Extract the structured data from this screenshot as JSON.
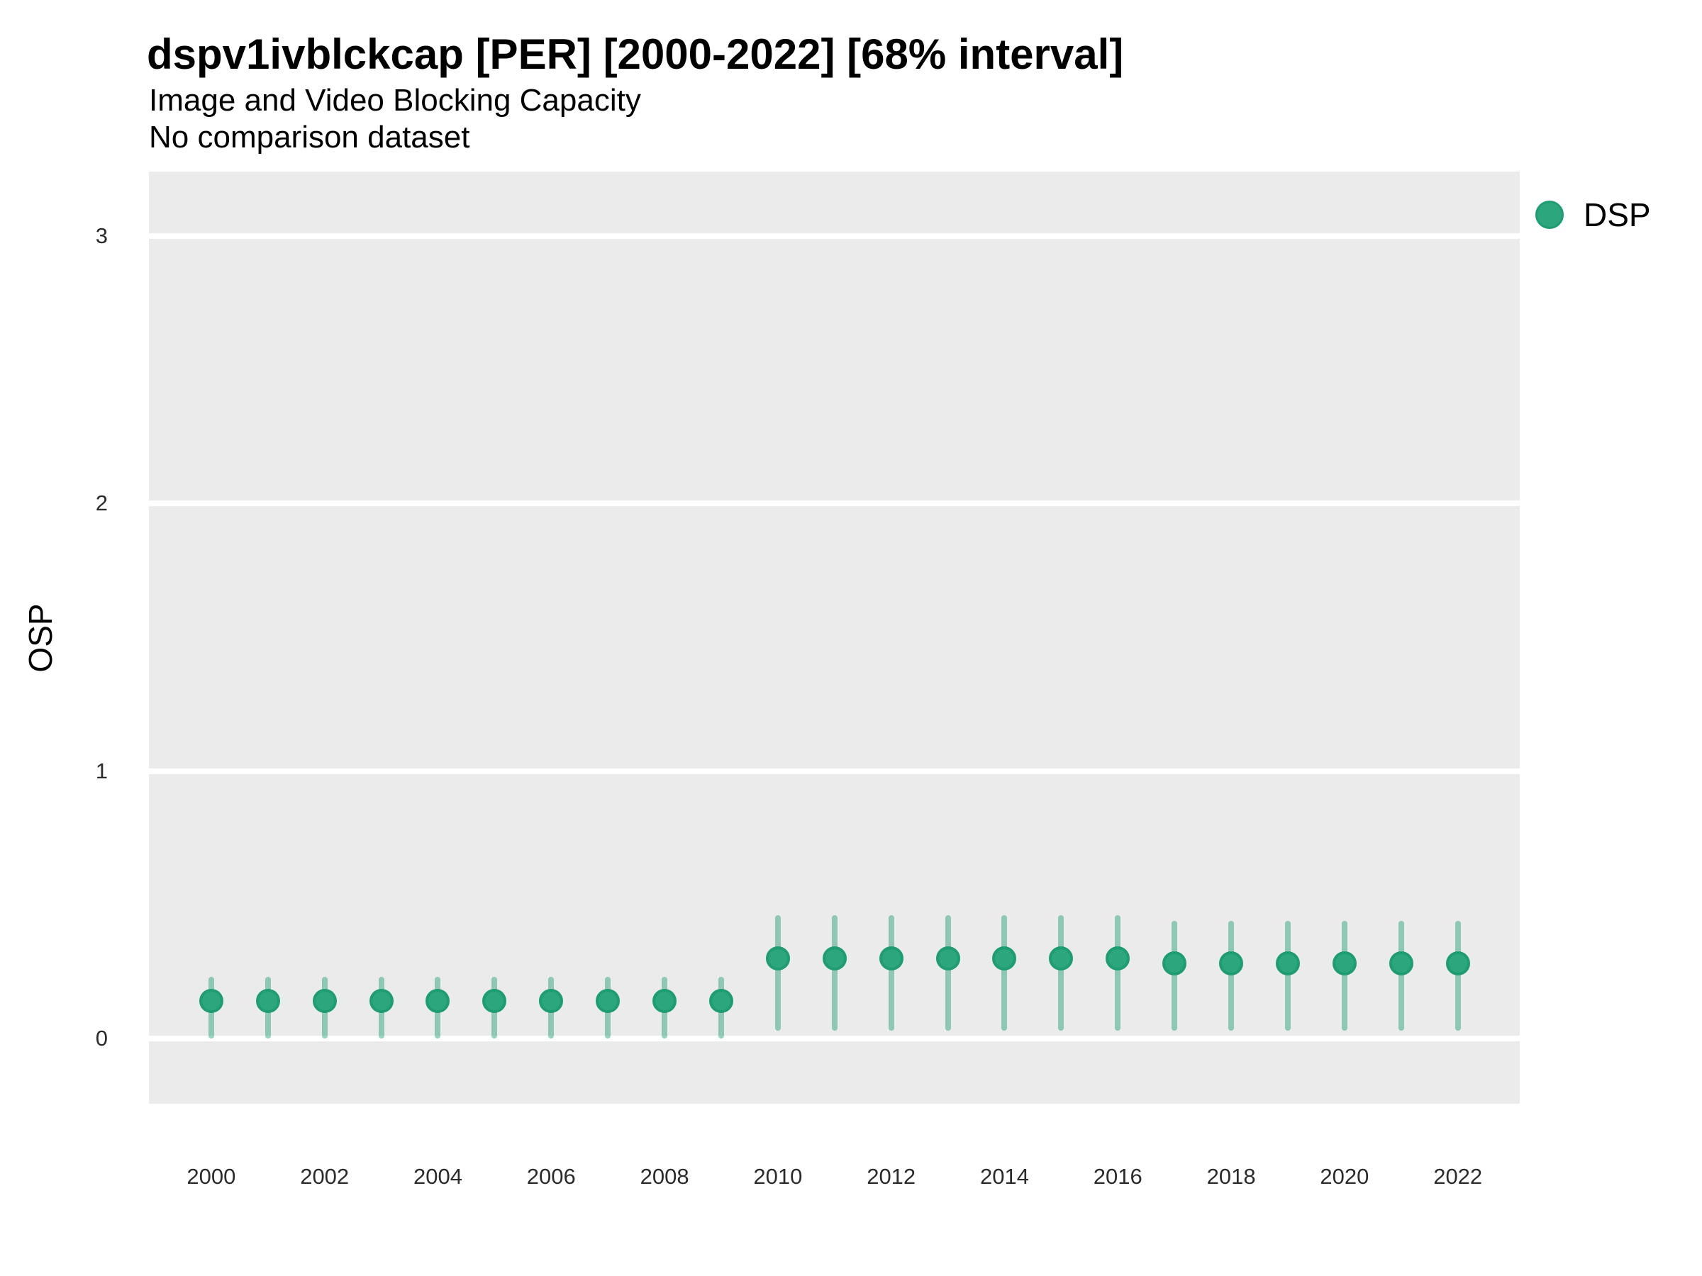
{
  "header": {
    "title": "dspv1ivblckcap [PER] [2000-2022] [68% interval]",
    "subtitle_line1": "Image and Video Blocking Capacity",
    "subtitle_line2": "No comparison dataset"
  },
  "legend": {
    "label": "DSP"
  },
  "chart_data": {
    "type": "scatter",
    "subtype": "pointrange",
    "title": "dspv1ivblckcap [PER] [2000-2022] [68% interval]",
    "subtitle": [
      "Image and Video Blocking Capacity",
      "No comparison dataset"
    ],
    "interval_level": "68%",
    "xlabel": "",
    "ylabel": "OSP",
    "x": [
      2000,
      2001,
      2002,
      2003,
      2004,
      2005,
      2006,
      2007,
      2008,
      2009,
      2010,
      2011,
      2012,
      2013,
      2014,
      2015,
      2016,
      2017,
      2018,
      2019,
      2020,
      2021,
      2022
    ],
    "series": [
      {
        "name": "DSP",
        "values": [
          0.14,
          0.14,
          0.14,
          0.14,
          0.14,
          0.14,
          0.14,
          0.14,
          0.14,
          0.14,
          0.3,
          0.3,
          0.3,
          0.3,
          0.3,
          0.3,
          0.3,
          0.28,
          0.28,
          0.28,
          0.28,
          0.28,
          0.28
        ],
        "lower": [
          0.0,
          0.0,
          0.0,
          0.0,
          0.0,
          0.0,
          0.0,
          0.0,
          0.0,
          0.0,
          0.03,
          0.03,
          0.03,
          0.03,
          0.03,
          0.03,
          0.03,
          0.03,
          0.03,
          0.03,
          0.03,
          0.03,
          0.03
        ],
        "upper": [
          0.23,
          0.23,
          0.23,
          0.23,
          0.23,
          0.23,
          0.23,
          0.23,
          0.23,
          0.23,
          0.46,
          0.46,
          0.46,
          0.46,
          0.46,
          0.46,
          0.46,
          0.44,
          0.44,
          0.44,
          0.44,
          0.44,
          0.44
        ]
      }
    ],
    "x_tick_labels": [
      "2000",
      "2002",
      "2004",
      "2006",
      "2008",
      "2010",
      "2012",
      "2014",
      "2016",
      "2018",
      "2020",
      "2022"
    ],
    "y_tick_labels": [
      "0",
      "1",
      "2",
      "3"
    ],
    "y_ticks": [
      0,
      1,
      2,
      3
    ],
    "x_ticks": [
      2000,
      2002,
      2004,
      2006,
      2008,
      2010,
      2012,
      2014,
      2016,
      2018,
      2020,
      2022
    ],
    "ylim": [
      -0.24,
      3.24
    ],
    "xlim": [
      1998.9,
      2023.1
    ],
    "grid": "horizontal-major-only",
    "legend_position": "right-top",
    "colors": {
      "point_fill": "#2BA67D",
      "point_stroke": "#1E9C72",
      "interval": "rgba(27,158,119,0.45)",
      "panel_background": "#EBEBEB",
      "gridline": "#FFFFFF",
      "title_text": "#000000",
      "tick_text": "#2B2B2B"
    }
  }
}
